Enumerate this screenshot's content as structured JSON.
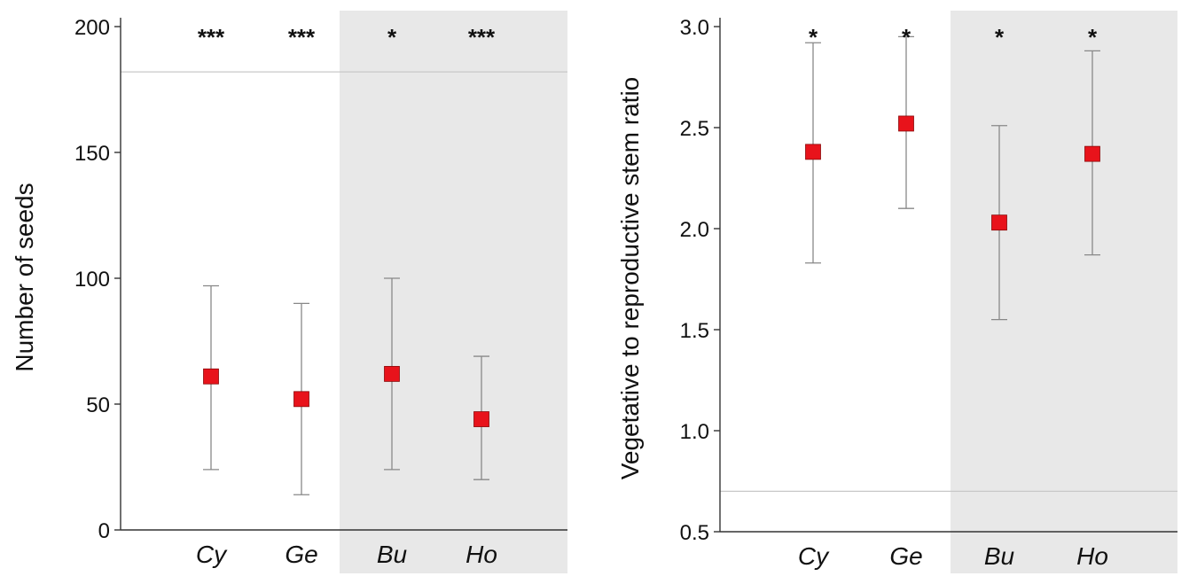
{
  "chart_data": [
    {
      "type": "scatter",
      "title": "",
      "xlabel": "",
      "ylabel": "Number of seeds",
      "ylim": [
        0,
        200
      ],
      "yticks": [
        0,
        50,
        100,
        150,
        200
      ],
      "categories": [
        "Cy",
        "Ge",
        "Bu",
        "Ho"
      ],
      "shaded_categories": [
        "Bu",
        "Ho"
      ],
      "reference_line": 182,
      "series": [
        {
          "values": [
            61,
            52,
            62,
            44
          ],
          "lower": [
            24,
            14,
            24,
            20
          ],
          "upper": [
            97,
            90,
            100,
            69
          ],
          "significance": [
            "***",
            "***",
            "*",
            "***"
          ]
        }
      ],
      "grid": false,
      "colors": {
        "marker": "#e8131b",
        "errorbar": "#888888",
        "shade": "#e8e8e8",
        "refline": "#c8c8c8"
      }
    },
    {
      "type": "scatter",
      "title": "",
      "xlabel": "",
      "ylabel": "Vegetative to reproductive stem ratio",
      "ylim": [
        0.5,
        3.0
      ],
      "yticks": [
        0.5,
        1.0,
        1.5,
        2.0,
        2.5,
        3.0
      ],
      "categories": [
        "Cy",
        "Ge",
        "Bu",
        "Ho"
      ],
      "shaded_categories": [
        "Bu",
        "Ho"
      ],
      "reference_line": 0.7,
      "series": [
        {
          "values": [
            2.38,
            2.52,
            2.03,
            2.37
          ],
          "lower": [
            1.83,
            2.1,
            1.55,
            1.87
          ],
          "upper": [
            2.92,
            2.95,
            2.51,
            2.88
          ],
          "significance": [
            "*",
            "*",
            "*",
            "*"
          ]
        }
      ],
      "grid": false,
      "colors": {
        "marker": "#e8131b",
        "errorbar": "#888888",
        "shade": "#e8e8e8",
        "refline": "#c8c8c8"
      }
    }
  ]
}
